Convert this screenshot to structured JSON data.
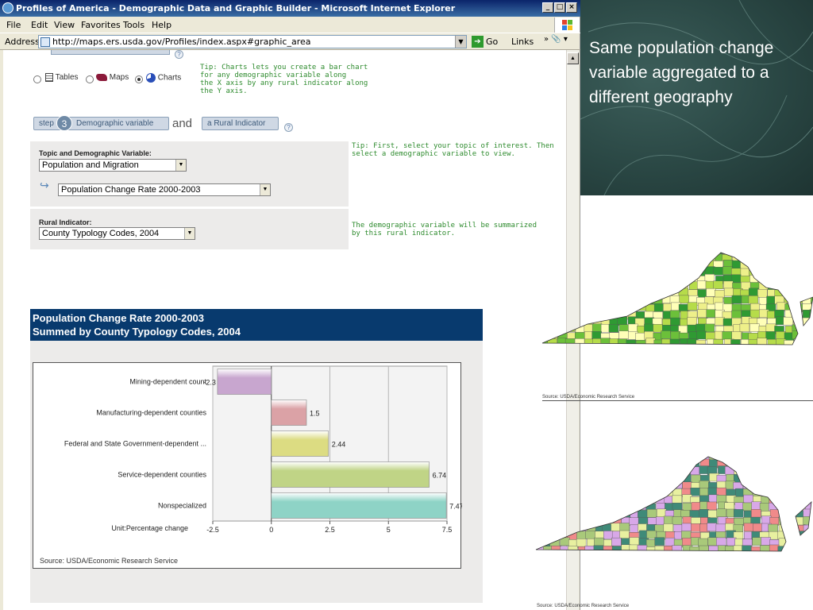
{
  "window": {
    "title": "Profiles of America - Demographic Data and Graphic Builder - Microsoft Internet Explorer",
    "controls": {
      "minimize": "_",
      "maximize": "□",
      "close": "×"
    }
  },
  "menu": {
    "file": "File",
    "edit": "Edit",
    "view": "View",
    "favorites": "Favorites",
    "tools": "Tools",
    "help": "Help"
  },
  "address_bar": {
    "label": "Address",
    "url": "http://maps.ers.usda.gov/Profiles/index.aspx#graphic_area",
    "go": "Go",
    "links": "Links"
  },
  "view_options": {
    "tables": "Tables",
    "maps": "Maps",
    "charts": "Charts",
    "selected": "Charts",
    "tip": "Tip: Charts lets you create a bar chart\nfor any demographic variable along\nthe X axis by any rural indicator along\nthe Y axis."
  },
  "steps": {
    "step_label": "step",
    "step_number": "3",
    "demographic_tab": "Demographic variable",
    "and": "and",
    "rural_tab": "a Rural Indicator"
  },
  "topic_panel": {
    "label": "Topic and Demographic Variable:",
    "topic_value": "Population and Migration",
    "variable_value": "Population Change Rate 2000-2003",
    "tip": "Tip: First, select your topic of interest. Then\nselect a demographic variable to view."
  },
  "rural_panel": {
    "label": "Rural Indicator:",
    "value": "County Typology Codes, 2004",
    "note": "The demographic variable will be summarized\nby this rural indicator."
  },
  "chart_header": {
    "line1": "Population Change Rate 2000-2003",
    "line2": "Summed by County Typology Codes, 2004"
  },
  "chart_data": {
    "type": "bar",
    "orientation": "horizontal",
    "categories": [
      "Mining-dependent count",
      "Manufacturing-dependent counties",
      "Federal and State Government-dependent ...",
      "Service-dependent counties",
      "Nonspecialized"
    ],
    "values": [
      -2.3,
      1.5,
      2.44,
      6.74,
      7.47
    ],
    "value_labels": [
      "-2.3",
      "1.5",
      "2.44",
      "6.74",
      "7.47"
    ],
    "colors": [
      "#c8a6cf",
      "#dba2a6",
      "#dcdc82",
      "#c0d486",
      "#8ed3c6"
    ],
    "xlim": [
      -2.5,
      7.5
    ],
    "xticks": [
      "-2.5",
      "0",
      "2.5",
      "5",
      "7.5"
    ],
    "xtick_values": [
      -2.5,
      0,
      2.5,
      5,
      7.5
    ],
    "unit_label": "Unit:Percentage change",
    "source": "Source: USDA/Economic Research Service",
    "grid": true
  },
  "slide": {
    "text": "Same population change variable aggregated to a different geography"
  },
  "maps": [
    {
      "source": "Source: USDA/Economic Research Service",
      "palette": [
        "#2f9a33",
        "#6cc03a",
        "#b6dc4a",
        "#eef08a",
        "#ffffb8"
      ]
    },
    {
      "source": "Source: USDA/Economic Research Service",
      "palette": [
        "#f08a8a",
        "#3f8a78",
        "#a9c97a",
        "#d8a8e8",
        "#e8f0a0"
      ]
    }
  ]
}
